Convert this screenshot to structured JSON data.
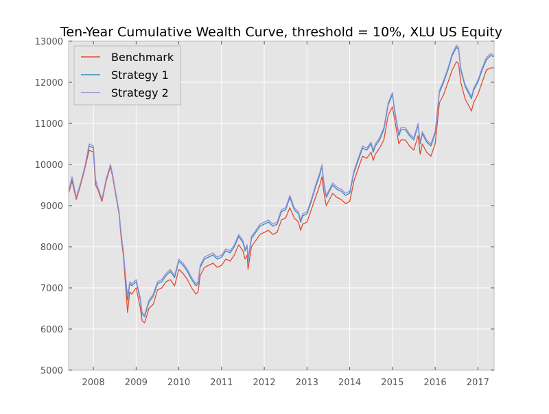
{
  "chart_data": {
    "type": "line",
    "title": "Ten-Year Cumulative Wealth Curve, threshold = 10%, XLU US Equity",
    "xlabel": "",
    "ylabel": "",
    "xlim": [
      2007.42,
      2017.38
    ],
    "ylim": [
      5000,
      13000
    ],
    "x_ticks": [
      2008,
      2009,
      2010,
      2011,
      2012,
      2013,
      2014,
      2015,
      2016,
      2017
    ],
    "x_tick_labels": [
      "2008",
      "2009",
      "2010",
      "2011",
      "2012",
      "2013",
      "2014",
      "2015",
      "2016",
      "2017"
    ],
    "y_ticks": [
      5000,
      6000,
      7000,
      8000,
      9000,
      10000,
      11000,
      12000,
      13000
    ],
    "y_tick_labels": [
      "5000",
      "6000",
      "7000",
      "8000",
      "9000",
      "10000",
      "11000",
      "12000",
      "13000"
    ],
    "grid": true,
    "legend_position": "top-left",
    "background": "#e5e5e5",
    "series": [
      {
        "name": "Benchmark",
        "color": "#e24a33",
        "x": [
          2007.42,
          2007.5,
          2007.6,
          2007.7,
          2007.8,
          2007.9,
          2008.0,
          2008.05,
          2008.1,
          2008.2,
          2008.3,
          2008.4,
          2008.45,
          2008.5,
          2008.55,
          2008.6,
          2008.65,
          2008.7,
          2008.75,
          2008.8,
          2008.85,
          2008.9,
          2009.0,
          2009.1,
          2009.14,
          2009.2,
          2009.3,
          2009.4,
          2009.5,
          2009.6,
          2009.7,
          2009.8,
          2009.9,
          2010.0,
          2010.1,
          2010.2,
          2010.3,
          2010.4,
          2010.45,
          2010.5,
          2010.6,
          2010.7,
          2010.8,
          2010.9,
          2011.0,
          2011.1,
          2011.2,
          2011.3,
          2011.4,
          2011.5,
          2011.55,
          2011.6,
          2011.62,
          2011.7,
          2011.8,
          2011.9,
          2012.0,
          2012.1,
          2012.2,
          2012.3,
          2012.4,
          2012.5,
          2012.6,
          2012.7,
          2012.8,
          2012.85,
          2012.9,
          2013.0,
          2013.1,
          2013.2,
          2013.3,
          2013.35,
          2013.4,
          2013.45,
          2013.5,
          2013.6,
          2013.7,
          2013.8,
          2013.9,
          2014.0,
          2014.1,
          2014.2,
          2014.3,
          2014.4,
          2014.5,
          2014.55,
          2014.6,
          2014.7,
          2014.8,
          2014.9,
          2015.0,
          2015.05,
          2015.1,
          2015.15,
          2015.2,
          2015.3,
          2015.4,
          2015.5,
          2015.6,
          2015.65,
          2015.7,
          2015.8,
          2015.9,
          2016.0,
          2016.1,
          2016.2,
          2016.3,
          2016.4,
          2016.5,
          2016.55,
          2016.6,
          2016.7,
          2016.8,
          2016.85,
          2016.9,
          2017.0,
          2017.1,
          2017.2,
          2017.3,
          2017.38
        ],
        "y": [
          9300,
          9600,
          9150,
          9500,
          9900,
          10350,
          10300,
          9500,
          9400,
          9100,
          9600,
          9950,
          9700,
          9400,
          9100,
          8800,
          8200,
          7800,
          7100,
          6400,
          6900,
          6850,
          7000,
          6500,
          6200,
          6150,
          6500,
          6600,
          6950,
          7000,
          7150,
          7200,
          7050,
          7450,
          7350,
          7200,
          7000,
          6850,
          6900,
          7300,
          7500,
          7550,
          7600,
          7500,
          7550,
          7700,
          7650,
          7800,
          8050,
          7900,
          7700,
          7800,
          7450,
          8000,
          8150,
          8300,
          8350,
          8400,
          8300,
          8350,
          8650,
          8700,
          8950,
          8700,
          8600,
          8400,
          8550,
          8600,
          8900,
          9200,
          9500,
          9700,
          9300,
          9000,
          9100,
          9300,
          9200,
          9150,
          9050,
          9100,
          9600,
          9900,
          10200,
          10150,
          10300,
          10100,
          10250,
          10400,
          10600,
          11200,
          11400,
          11100,
          10800,
          10500,
          10600,
          10600,
          10450,
          10350,
          10700,
          10250,
          10500,
          10300,
          10200,
          10500,
          11500,
          11700,
          12000,
          12300,
          12500,
          12450,
          12000,
          11600,
          11400,
          11300,
          11500,
          11700,
          12000,
          12300,
          12350,
          12350
        ]
      },
      {
        "name": "Strategy 1",
        "color": "#348abd",
        "x": [
          2007.42,
          2007.5,
          2007.6,
          2007.7,
          2007.8,
          2007.9,
          2008.0,
          2008.05,
          2008.1,
          2008.2,
          2008.3,
          2008.4,
          2008.45,
          2008.5,
          2008.55,
          2008.6,
          2008.65,
          2008.7,
          2008.75,
          2008.8,
          2008.85,
          2008.9,
          2009.0,
          2009.1,
          2009.14,
          2009.2,
          2009.3,
          2009.4,
          2009.5,
          2009.6,
          2009.7,
          2009.8,
          2009.9,
          2010.0,
          2010.1,
          2010.2,
          2010.3,
          2010.4,
          2010.45,
          2010.5,
          2010.6,
          2010.7,
          2010.8,
          2010.9,
          2011.0,
          2011.1,
          2011.2,
          2011.3,
          2011.4,
          2011.5,
          2011.55,
          2011.6,
          2011.62,
          2011.7,
          2011.8,
          2011.9,
          2012.0,
          2012.1,
          2012.2,
          2012.3,
          2012.4,
          2012.5,
          2012.6,
          2012.7,
          2012.8,
          2012.85,
          2012.9,
          2013.0,
          2013.1,
          2013.2,
          2013.3,
          2013.35,
          2013.4,
          2013.45,
          2013.5,
          2013.6,
          2013.7,
          2013.8,
          2013.9,
          2014.0,
          2014.1,
          2014.2,
          2014.3,
          2014.4,
          2014.5,
          2014.55,
          2014.6,
          2014.7,
          2014.8,
          2014.9,
          2015.0,
          2015.05,
          2015.1,
          2015.15,
          2015.2,
          2015.3,
          2015.4,
          2015.5,
          2015.6,
          2015.65,
          2015.7,
          2015.8,
          2015.9,
          2016.0,
          2016.1,
          2016.2,
          2016.3,
          2016.4,
          2016.5,
          2016.55,
          2016.6,
          2016.7,
          2016.8,
          2016.85,
          2016.9,
          2017.0,
          2017.1,
          2017.2,
          2017.3,
          2017.38
        ],
        "y": [
          9350,
          9650,
          9200,
          9550,
          9950,
          10450,
          10400,
          9600,
          9450,
          9150,
          9650,
          10000,
          9750,
          9450,
          9150,
          8850,
          8300,
          7900,
          7300,
          6700,
          7100,
          7050,
          7150,
          6700,
          6350,
          6300,
          6650,
          6800,
          7100,
          7150,
          7300,
          7400,
          7250,
          7650,
          7550,
          7400,
          7200,
          7050,
          7100,
          7500,
          7700,
          7750,
          7800,
          7700,
          7750,
          7900,
          7850,
          8000,
          8250,
          8100,
          7900,
          8000,
          7650,
          8200,
          8350,
          8500,
          8550,
          8600,
          8500,
          8550,
          8850,
          8900,
          9200,
          8900,
          8800,
          8600,
          8750,
          8800,
          9100,
          9450,
          9750,
          9950,
          9500,
          9200,
          9300,
          9500,
          9400,
          9350,
          9250,
          9300,
          9800,
          10100,
          10400,
          10350,
          10500,
          10300,
          10450,
          10600,
          10850,
          11450,
          11700,
          11300,
          11000,
          10700,
          10850,
          10850,
          10700,
          10600,
          10950,
          10500,
          10750,
          10550,
          10450,
          10750,
          11750,
          12000,
          12300,
          12650,
          12850,
          12800,
          12300,
          11900,
          11700,
          11600,
          11800,
          12000,
          12300,
          12550,
          12650,
          12620
        ]
      },
      {
        "name": "Strategy 2",
        "color": "#988ed5",
        "x": [
          2007.42,
          2007.5,
          2007.6,
          2007.7,
          2007.8,
          2007.9,
          2008.0,
          2008.05,
          2008.1,
          2008.2,
          2008.3,
          2008.4,
          2008.45,
          2008.5,
          2008.55,
          2008.6,
          2008.65,
          2008.7,
          2008.75,
          2008.8,
          2008.85,
          2008.9,
          2009.0,
          2009.1,
          2009.14,
          2009.2,
          2009.3,
          2009.4,
          2009.5,
          2009.6,
          2009.7,
          2009.8,
          2009.9,
          2010.0,
          2010.1,
          2010.2,
          2010.3,
          2010.4,
          2010.45,
          2010.5,
          2010.6,
          2010.7,
          2010.8,
          2010.9,
          2011.0,
          2011.1,
          2011.2,
          2011.3,
          2011.4,
          2011.5,
          2011.55,
          2011.6,
          2011.62,
          2011.7,
          2011.8,
          2011.9,
          2012.0,
          2012.1,
          2012.2,
          2012.3,
          2012.4,
          2012.5,
          2012.6,
          2012.7,
          2012.8,
          2012.85,
          2012.9,
          2013.0,
          2013.1,
          2013.2,
          2013.3,
          2013.35,
          2013.4,
          2013.45,
          2013.5,
          2013.6,
          2013.7,
          2013.8,
          2013.9,
          2014.0,
          2014.1,
          2014.2,
          2014.3,
          2014.4,
          2014.5,
          2014.55,
          2014.6,
          2014.7,
          2014.8,
          2014.9,
          2015.0,
          2015.05,
          2015.1,
          2015.15,
          2015.2,
          2015.3,
          2015.4,
          2015.5,
          2015.6,
          2015.65,
          2015.7,
          2015.8,
          2015.9,
          2016.0,
          2016.1,
          2016.2,
          2016.3,
          2016.4,
          2016.5,
          2016.55,
          2016.6,
          2016.7,
          2016.8,
          2016.85,
          2016.9,
          2017.0,
          2017.1,
          2017.2,
          2017.3,
          2017.38
        ],
        "y": [
          9350,
          9700,
          9200,
          9550,
          9950,
          10500,
          10450,
          9650,
          9450,
          9150,
          9650,
          10000,
          9750,
          9450,
          9150,
          8850,
          8300,
          7900,
          7300,
          6800,
          7150,
          7100,
          7200,
          6750,
          6400,
          6350,
          6700,
          6850,
          7150,
          7200,
          7350,
          7450,
          7300,
          7700,
          7600,
          7450,
          7250,
          7100,
          7150,
          7550,
          7750,
          7800,
          7850,
          7750,
          7800,
          7950,
          7900,
          8050,
          8300,
          8150,
          7950,
          8050,
          7700,
          8250,
          8400,
          8550,
          8600,
          8650,
          8550,
          8600,
          8900,
          8950,
          9250,
          8950,
          8850,
          8650,
          8800,
          8850,
          9150,
          9500,
          9800,
          10000,
          9550,
          9250,
          9350,
          9550,
          9450,
          9400,
          9300,
          9350,
          9850,
          10150,
          10450,
          10400,
          10550,
          10350,
          10500,
          10650,
          10900,
          11500,
          11750,
          11350,
          11050,
          10750,
          10900,
          10900,
          10750,
          10650,
          11000,
          10550,
          10800,
          10600,
          10500,
          10800,
          11800,
          12050,
          12350,
          12700,
          12900,
          12850,
          12350,
          11950,
          11750,
          11650,
          11850,
          12050,
          12350,
          12600,
          12700,
          12650
        ]
      }
    ]
  }
}
